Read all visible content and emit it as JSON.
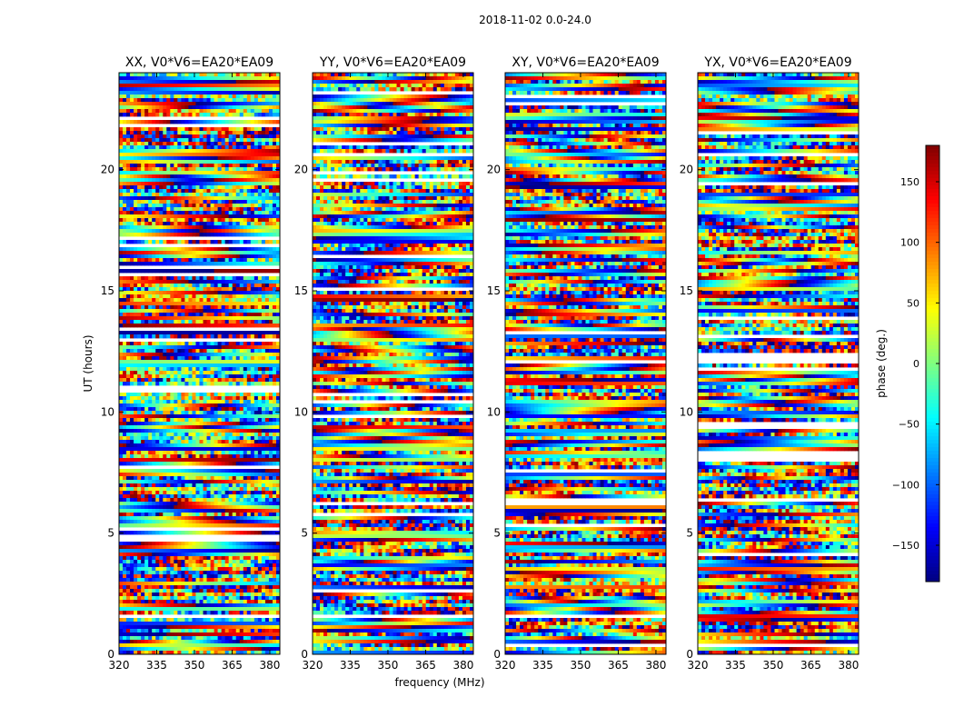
{
  "figure": {
    "suptitle": "2018-11-02 0.0-24.0"
  },
  "chart_data": [
    {
      "type": "heatmap",
      "title": "XX, V0*V6=EA20*EA09",
      "xlabel": "",
      "ylabel": "UT (hours)",
      "xlim": [
        320,
        384
      ],
      "ylim": [
        0,
        24
      ],
      "xticks": [
        320,
        335,
        350,
        365,
        380
      ],
      "yticks": [
        0,
        5,
        10,
        15,
        20
      ],
      "colorbar_label": "phase (deg.)"
    },
    {
      "type": "heatmap",
      "title": "YY, V0*V6=EA20*EA09",
      "xlabel": "frequency (MHz)",
      "ylabel": "",
      "xlim": [
        320,
        384
      ],
      "ylim": [
        0,
        24
      ],
      "xticks": [
        320,
        335,
        350,
        365,
        380
      ],
      "yticks": [
        0,
        5,
        10,
        15,
        20
      ],
      "colorbar_label": "phase (deg.)"
    },
    {
      "type": "heatmap",
      "title": "XY, V0*V6=EA20*EA09",
      "xlabel": "",
      "ylabel": "",
      "xlim": [
        320,
        384
      ],
      "ylim": [
        0,
        24
      ],
      "xticks": [
        320,
        335,
        350,
        365,
        380
      ],
      "yticks": [
        0,
        5,
        10,
        15,
        20
      ],
      "colorbar_label": "phase (deg.)"
    },
    {
      "type": "heatmap",
      "title": "YX, V0*V6=EA20*EA09",
      "xlabel": "",
      "ylabel": "",
      "xlim": [
        320,
        384
      ],
      "ylim": [
        0,
        24
      ],
      "xticks": [
        320,
        335,
        350,
        365,
        380
      ],
      "yticks": [
        0,
        5,
        10,
        15,
        20
      ],
      "colorbar_label": "phase (deg.)"
    }
  ],
  "colorbar": {
    "label": "phase (deg.)",
    "range": [
      -180,
      180
    ],
    "ticks": [
      -150,
      -100,
      -50,
      0,
      50,
      100,
      150
    ],
    "colormap": "jet"
  }
}
